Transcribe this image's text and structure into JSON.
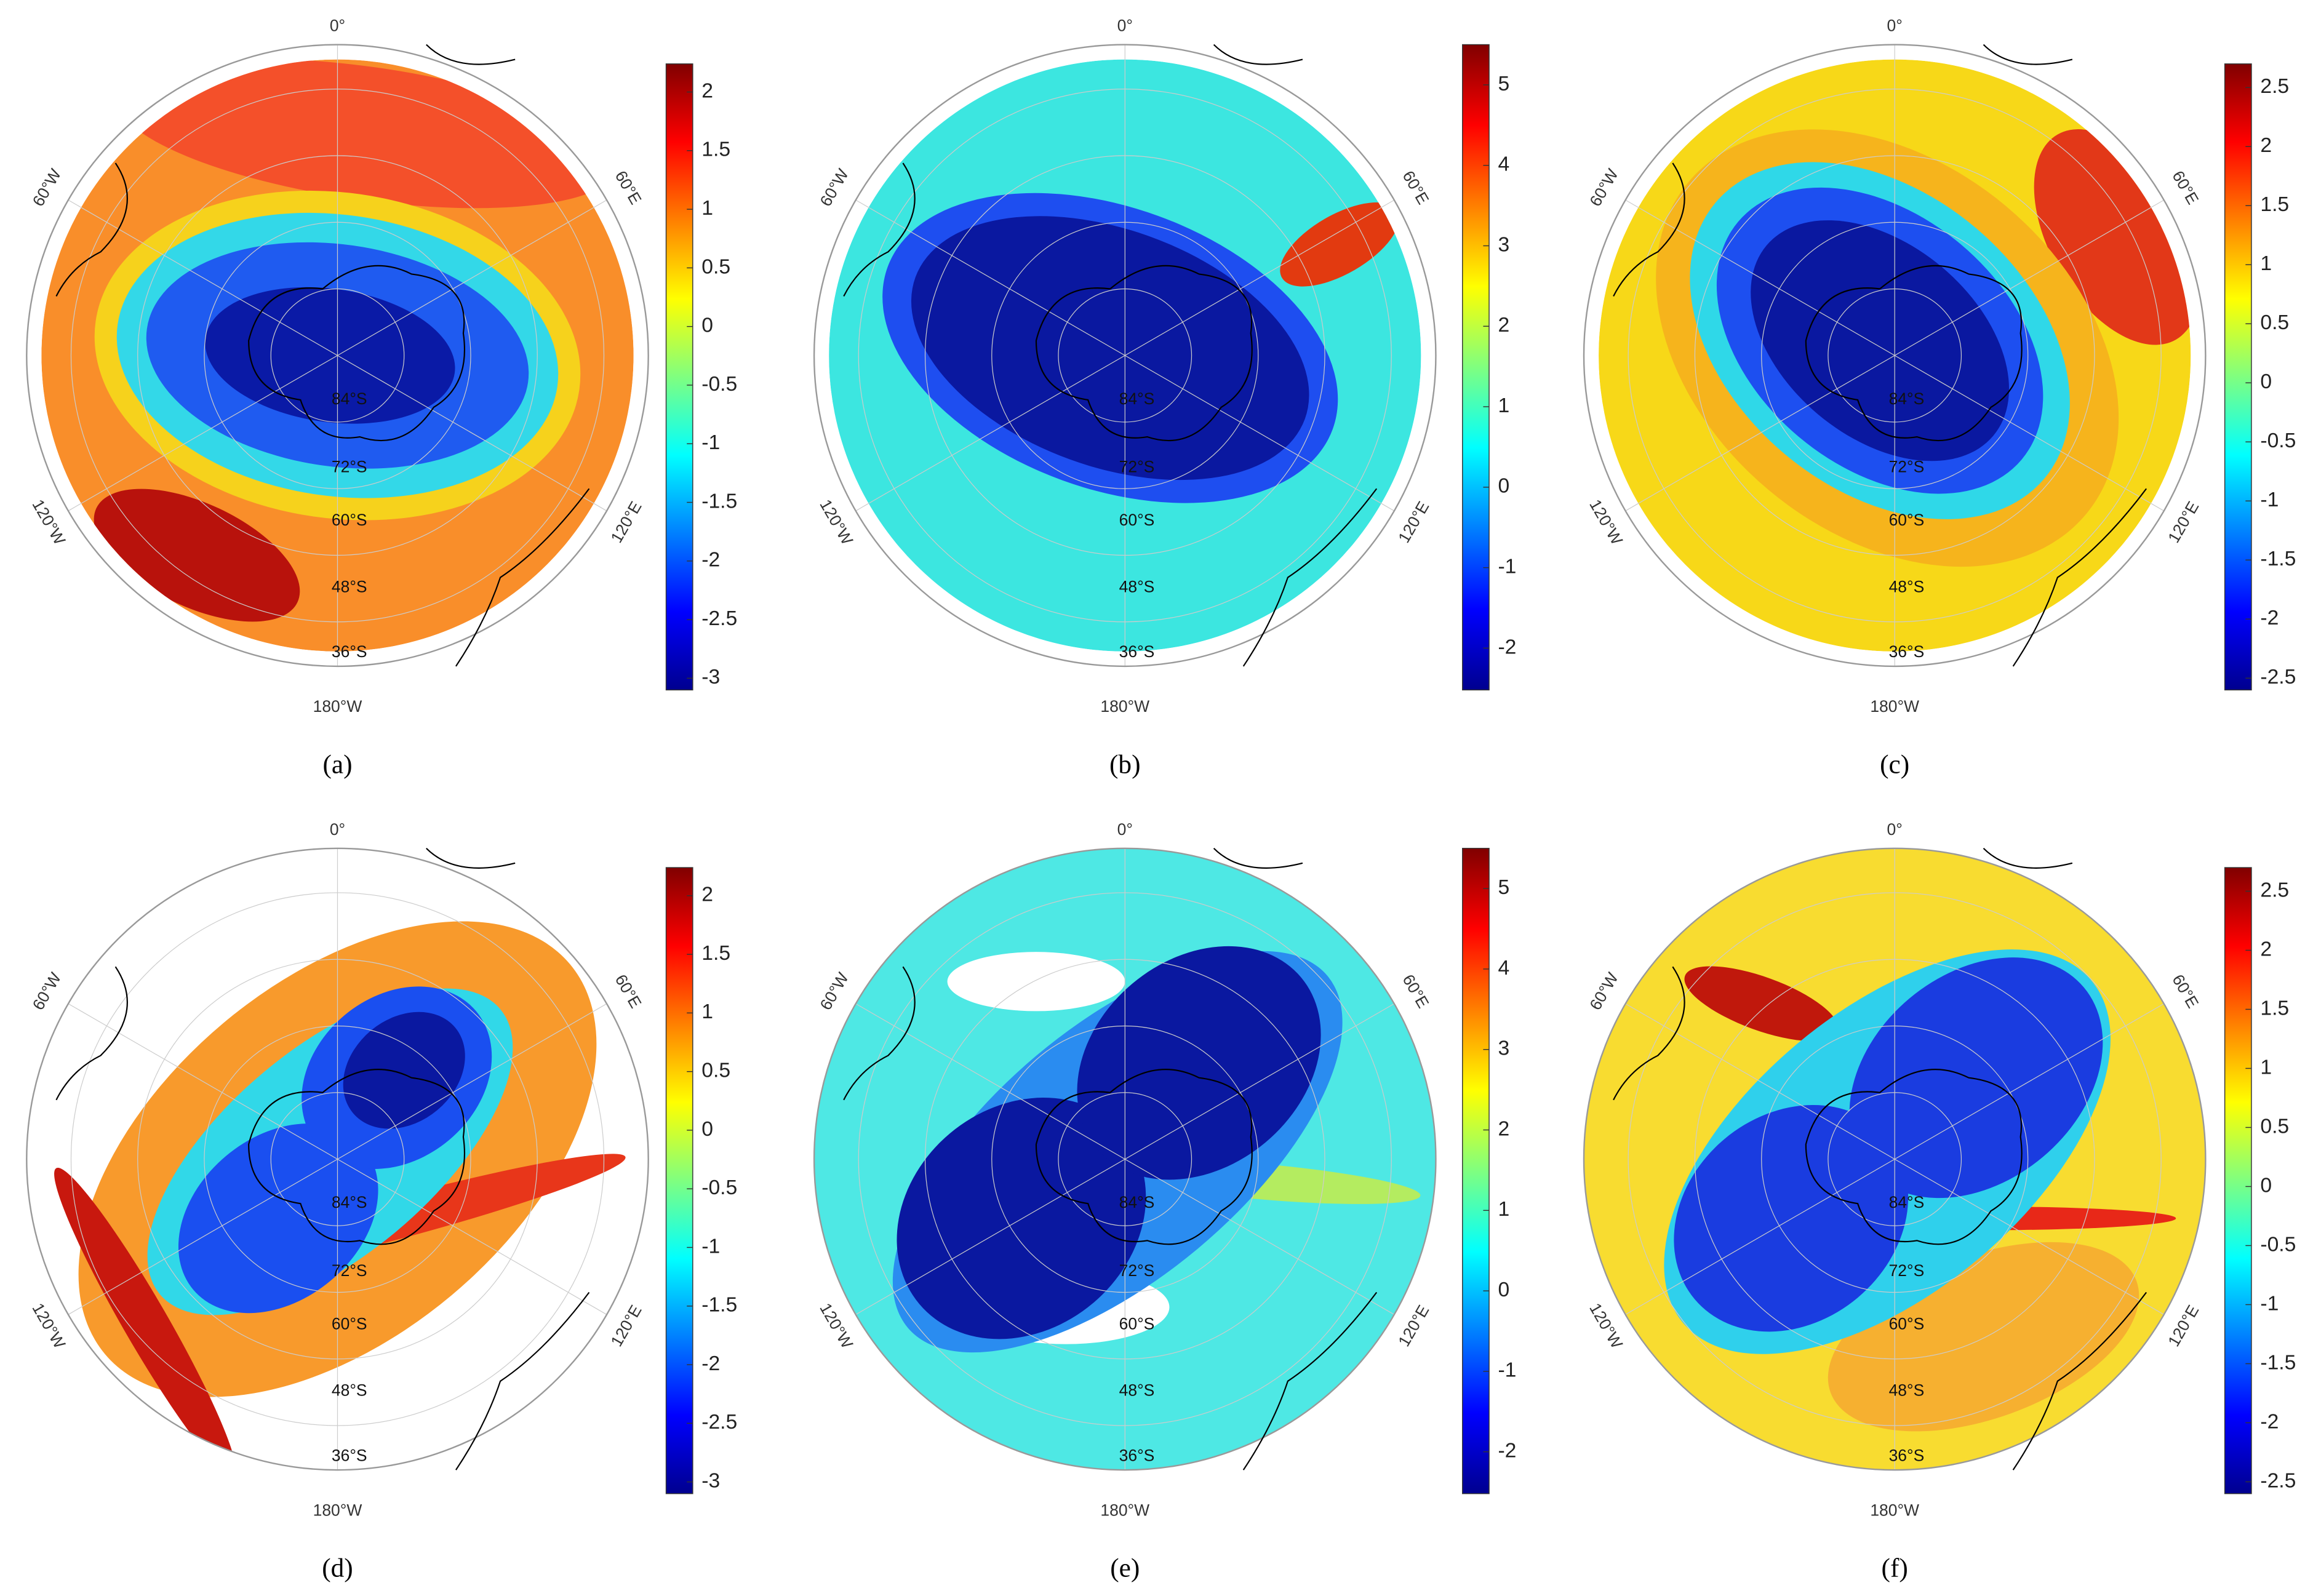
{
  "panels": [
    {
      "label": "(a)",
      "map_labels": {
        "lon": [
          "0°",
          "60°E",
          "120°E",
          "180°W",
          "120°W",
          "60°W"
        ],
        "lat": [
          "84°S",
          "72°S",
          "60°S",
          "48°S",
          "36°S"
        ]
      },
      "colorbar": {
        "lim": [
          -3.1,
          2.24
        ],
        "ticks": [
          2,
          1.5,
          1,
          0.5,
          0,
          -0.5,
          -1,
          -1.5,
          -2,
          -2.5,
          -3
        ]
      }
    },
    {
      "label": "(b)",
      "map_labels": {
        "lon": [
          "0°",
          "60°E",
          "120°E",
          "180°W",
          "120°W",
          "60°W"
        ],
        "lat": [
          "84°S",
          "72°S",
          "60°S",
          "48°S",
          "36°S"
        ]
      },
      "colorbar": {
        "lim": [
          -2.52,
          5.5
        ],
        "ticks": [
          5,
          4,
          3,
          2,
          1,
          0,
          -1,
          -2
        ]
      }
    },
    {
      "label": "(c)",
      "map_labels": {
        "lon": [
          "0°",
          "60°E",
          "120°E",
          "180°W",
          "120°W",
          "60°W"
        ],
        "lat": [
          "84°S",
          "72°S",
          "60°S",
          "48°S",
          "36°S"
        ]
      },
      "colorbar": {
        "lim": [
          -2.6,
          2.7
        ],
        "ticks": [
          2.5,
          2,
          1.5,
          1,
          0.5,
          0,
          -0.5,
          -1,
          -1.5,
          -2,
          -2.5
        ]
      }
    },
    {
      "label": "(d)",
      "map_labels": {
        "lon": [
          "0°",
          "60°E",
          "120°E",
          "180°W",
          "120°W",
          "60°W"
        ],
        "lat": [
          "84°S",
          "72°S",
          "60°S",
          "48°S",
          "36°S"
        ]
      },
      "colorbar": {
        "lim": [
          -3.1,
          2.24
        ],
        "ticks": [
          2,
          1.5,
          1,
          0.5,
          0,
          -0.5,
          -1,
          -1.5,
          -2,
          -2.5,
          -3
        ]
      }
    },
    {
      "label": "(e)",
      "map_labels": {
        "lon": [
          "0°",
          "60°E",
          "120°E",
          "180°W",
          "120°W",
          "60°W"
        ],
        "lat": [
          "84°S",
          "72°S",
          "60°S",
          "48°S",
          "36°S"
        ]
      },
      "colorbar": {
        "lim": [
          -2.52,
          5.5
        ],
        "ticks": [
          5,
          4,
          3,
          2,
          1,
          0,
          -1,
          -2
        ]
      }
    },
    {
      "label": "(f)",
      "map_labels": {
        "lon": [
          "0°",
          "60°E",
          "120°E",
          "180°W",
          "120°W",
          "60°W"
        ],
        "lat": [
          "84°S",
          "72°S",
          "60°S",
          "48°S",
          "36°S"
        ]
      },
      "colorbar": {
        "lim": [
          -2.6,
          2.7
        ],
        "ticks": [
          2.5,
          2,
          1.5,
          1,
          0.5,
          0,
          -0.5,
          -1,
          -1.5,
          -2,
          -2.5
        ]
      }
    }
  ]
}
